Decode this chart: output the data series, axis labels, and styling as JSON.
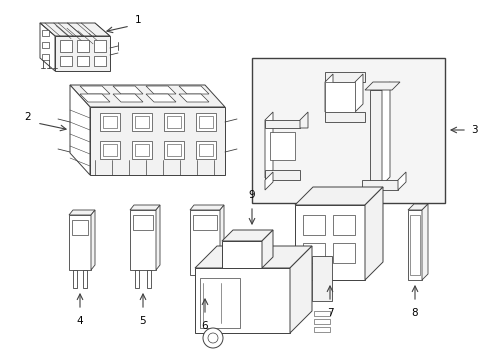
{
  "bg_color": "#ffffff",
  "line_color": "#404040",
  "label_color": "#000000",
  "figsize": [
    4.89,
    3.6
  ],
  "dpi": 100,
  "lw": 0.7,
  "gray_fill": "#e8e8e8",
  "light_fill": "#f2f2f2"
}
